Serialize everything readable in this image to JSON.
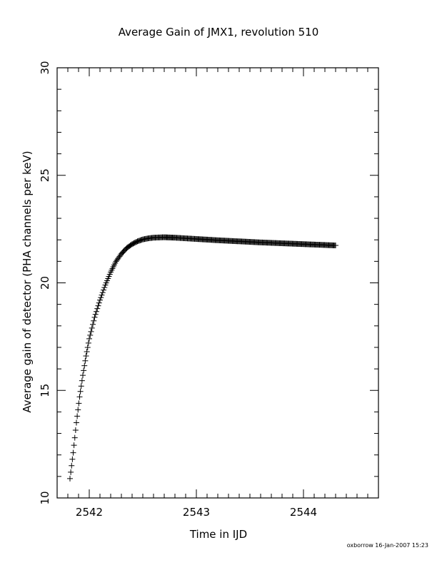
{
  "chart_data": {
    "type": "scatter",
    "title": "Average Gain of JMX1, revolution 510",
    "xlabel": "Time in IJD",
    "ylabel": "Average gain of detector (PHA channels per keV)",
    "xlim": [
      2541.7,
      2544.7
    ],
    "ylim": [
      10,
      30
    ],
    "x_ticks": [
      2542,
      2543,
      2544
    ],
    "y_ticks": [
      10,
      15,
      20,
      25,
      30
    ],
    "marker": "plus",
    "color": "#000000",
    "series": [
      {
        "points": [
          [
            2541.82,
            10.9
          ],
          [
            2541.85,
            12.1
          ],
          [
            2541.88,
            13.5
          ],
          [
            2541.91,
            14.7
          ],
          [
            2541.94,
            15.7
          ],
          [
            2541.97,
            16.6
          ],
          [
            2542.0,
            17.4
          ],
          [
            2542.05,
            18.4
          ],
          [
            2542.1,
            19.2
          ],
          [
            2542.15,
            19.9
          ],
          [
            2542.2,
            20.5
          ],
          [
            2542.25,
            21.0
          ],
          [
            2542.3,
            21.35
          ],
          [
            2542.35,
            21.62
          ],
          [
            2542.4,
            21.8
          ],
          [
            2542.45,
            21.93
          ],
          [
            2542.5,
            22.02
          ],
          [
            2542.55,
            22.07
          ],
          [
            2542.6,
            22.1
          ],
          [
            2542.7,
            22.12
          ],
          [
            2542.8,
            22.1
          ],
          [
            2542.9,
            22.07
          ],
          [
            2543.0,
            22.04
          ],
          [
            2543.2,
            21.98
          ],
          [
            2543.4,
            21.93
          ],
          [
            2543.6,
            21.88
          ],
          [
            2543.8,
            21.84
          ],
          [
            2544.0,
            21.8
          ],
          [
            2544.15,
            21.77
          ],
          [
            2544.3,
            21.74
          ]
        ]
      }
    ]
  },
  "footer_stamp": "oxborrow 16-Jan-2007 15:23"
}
